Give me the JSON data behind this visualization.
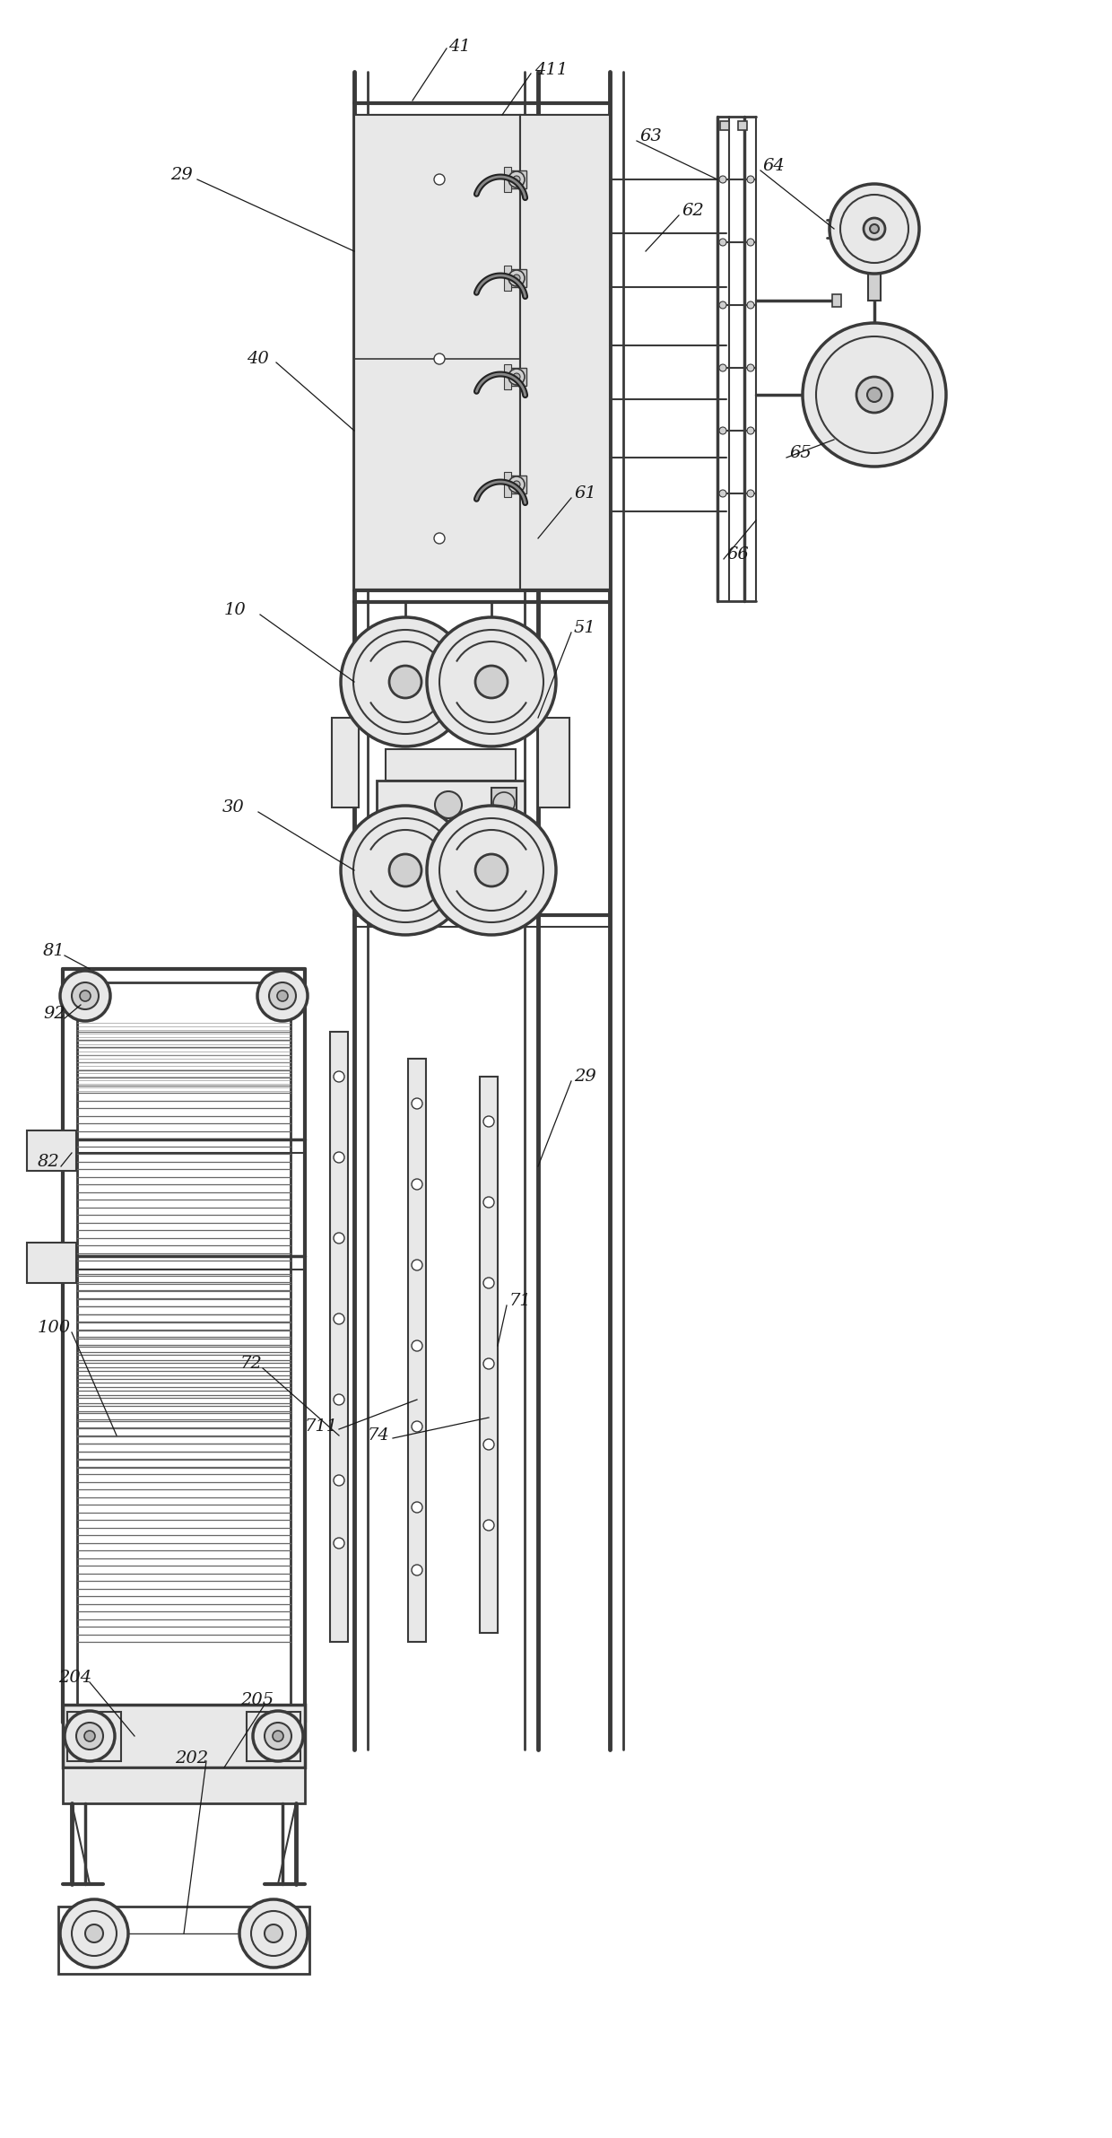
{
  "bg_color": "#ffffff",
  "lc": "#3a3a3a",
  "lc2": "#555555",
  "gray1": "#e8e8e8",
  "gray2": "#d0d0d0",
  "gray3": "#b0b0b0",
  "black": "#1a1a1a",
  "figsize": [
    12.4,
    23.83
  ],
  "dpi": 100,
  "fs": 14
}
